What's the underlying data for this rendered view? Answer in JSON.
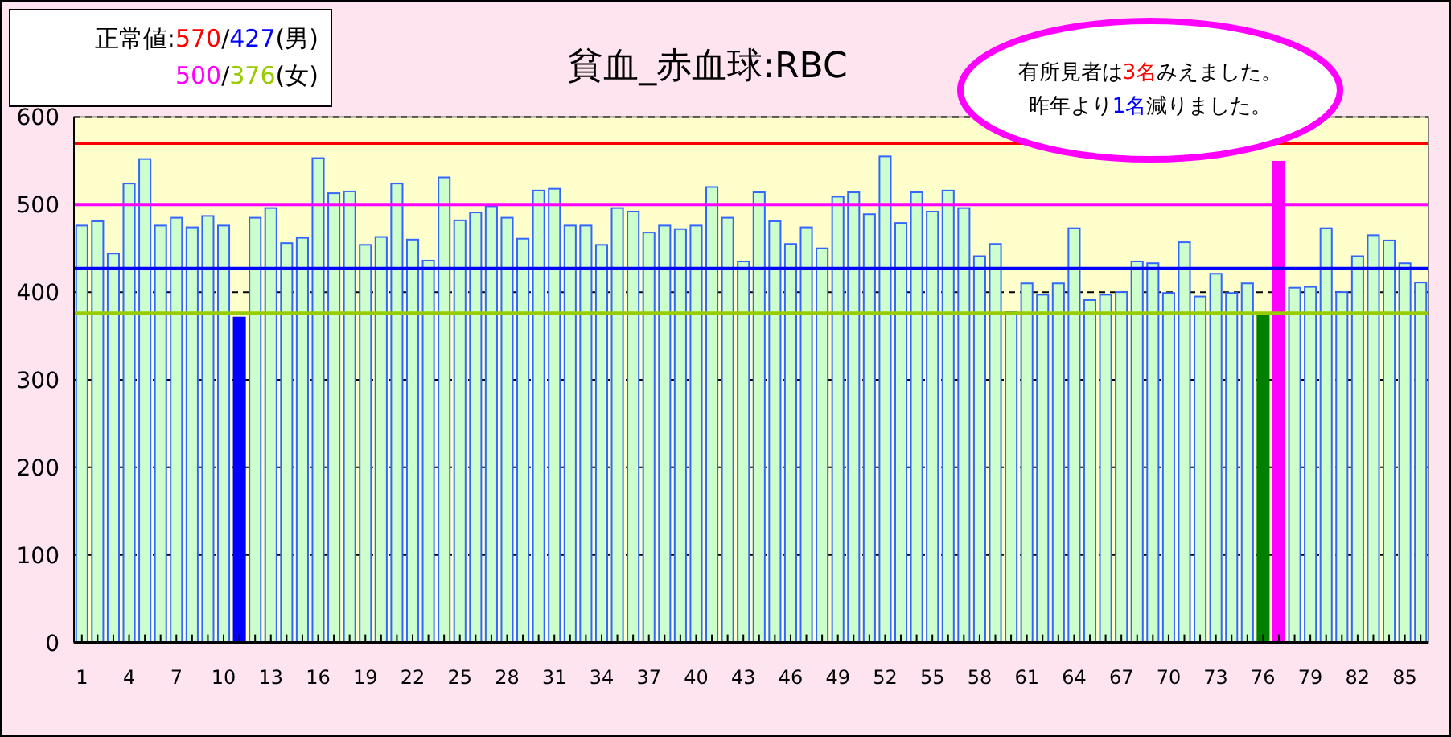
{
  "chart_data": {
    "type": "bar",
    "title": "貧血_赤血球:RBC",
    "categories": [
      "1",
      null,
      null,
      "4",
      null,
      null,
      "7",
      null,
      null,
      "10",
      null,
      null,
      "13",
      null,
      null,
      "16",
      null,
      null,
      "19",
      null,
      null,
      "22",
      null,
      null,
      "25",
      null,
      null,
      "28",
      null,
      null,
      "31",
      null,
      null,
      "34",
      null,
      null,
      "37",
      null,
      null,
      "40",
      null,
      null,
      "43",
      null,
      null,
      "46",
      null,
      null,
      "49",
      null,
      null,
      "52",
      null,
      null,
      "55",
      null,
      null,
      "58",
      null,
      null,
      "61",
      null,
      null,
      "64",
      null,
      null,
      "67",
      null,
      null,
      "70",
      null,
      null,
      "73",
      null,
      null,
      "76",
      null,
      null,
      "79",
      null,
      null,
      "82",
      null,
      null,
      "85",
      null
    ],
    "values": [
      476,
      481,
      444,
      524,
      552,
      476,
      485,
      474,
      487,
      476,
      371,
      485,
      496,
      456,
      462,
      553,
      513,
      515,
      454,
      463,
      524,
      460,
      436,
      531,
      482,
      491,
      498,
      485,
      461,
      516,
      518,
      476,
      476,
      454,
      496,
      492,
      468,
      476,
      472,
      476,
      520,
      485,
      435,
      514,
      481,
      455,
      474,
      450,
      509,
      514,
      489,
      555,
      479,
      514,
      492,
      516,
      496,
      441,
      455,
      378,
      410,
      397,
      410,
      473,
      391,
      397,
      400,
      435,
      433,
      399,
      457,
      395,
      421,
      399,
      410,
      373,
      549,
      405,
      406,
      473,
      400,
      441,
      465,
      459,
      433,
      411
    ],
    "colors": [
      "#ccffcc",
      "#ccffcc",
      "#ccffcc",
      "#ccffcc",
      "#ccffcc",
      "#ccffcc",
      "#ccffcc",
      "#ccffcc",
      "#ccffcc",
      "#ccffcc",
      "#0000ff",
      "#ccffcc",
      "#ccffcc",
      "#ccffcc",
      "#ccffcc",
      "#ccffcc",
      "#ccffcc",
      "#ccffcc",
      "#ccffcc",
      "#ccffcc",
      "#ccffcc",
      "#ccffcc",
      "#ccffcc",
      "#ccffcc",
      "#ccffcc",
      "#ccffcc",
      "#ccffcc",
      "#ccffcc",
      "#ccffcc",
      "#ccffcc",
      "#ccffcc",
      "#ccffcc",
      "#ccffcc",
      "#ccffcc",
      "#ccffcc",
      "#ccffcc",
      "#ccffcc",
      "#ccffcc",
      "#ccffcc",
      "#ccffcc",
      "#ccffcc",
      "#ccffcc",
      "#ccffcc",
      "#ccffcc",
      "#ccffcc",
      "#ccffcc",
      "#ccffcc",
      "#ccffcc",
      "#ccffcc",
      "#ccffcc",
      "#ccffcc",
      "#ccffcc",
      "#ccffcc",
      "#ccffcc",
      "#ccffcc",
      "#ccffcc",
      "#ccffcc",
      "#ccffcc",
      "#ccffcc",
      "#ccffcc",
      "#ccffcc",
      "#ccffcc",
      "#ccffcc",
      "#ccffcc",
      "#ccffcc",
      "#ccffcc",
      "#ccffcc",
      "#ccffcc",
      "#ccffcc",
      "#ccffcc",
      "#ccffcc",
      "#ccffcc",
      "#ccffcc",
      "#ccffcc",
      "#ccffcc",
      "#008000",
      "#ff00ff",
      "#ccffcc",
      "#ccffcc",
      "#ccffcc",
      "#ccffcc",
      "#ccffcc",
      "#ccffcc",
      "#ccffcc",
      "#ccffcc",
      "#ccffcc"
    ],
    "ylim": [
      0,
      600
    ],
    "yticks": [
      0,
      100,
      200,
      300,
      400,
      500,
      600
    ],
    "grid": "y",
    "ref_lines": [
      {
        "axis": "y",
        "value": 570,
        "color": "#ff0000"
      },
      {
        "axis": "y",
        "value": 427,
        "color": "#0000ff"
      },
      {
        "axis": "y",
        "value": 500,
        "color": "#ff00ff"
      },
      {
        "axis": "y",
        "value": 376,
        "color": "#99cc00"
      }
    ],
    "annotations": [
      "正常値:570/427(男)",
      "500/376(女)",
      "有所見者は3名みえました。",
      "昨年より1名減りました。"
    ]
  }
}
